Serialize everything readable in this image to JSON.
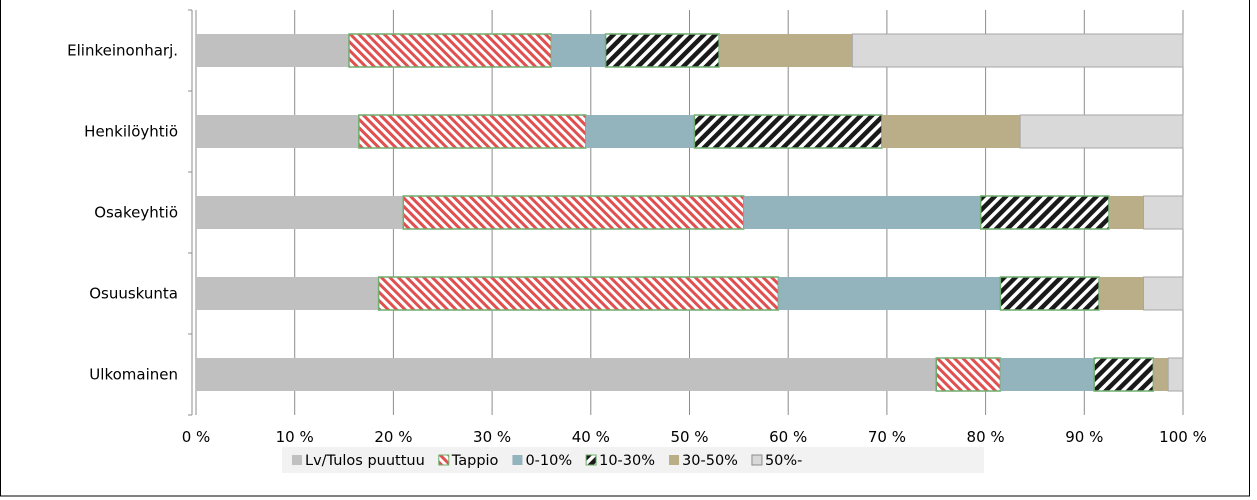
{
  "chart_data": {
    "type": "bar",
    "orientation": "horizontal",
    "stacked": true,
    "percent_stacked": true,
    "title_fragment": "",
    "categories": [
      "Elinkeinonharj.",
      "Henkilöyhtiö",
      "Osakeyhtiö",
      "Osuuskunta",
      "Ulkomainen"
    ],
    "series": [
      {
        "name": "Lv/Tulos puuttuu",
        "color": "#c0c0c0",
        "pattern": "solid",
        "values": [
          15.5,
          16.5,
          21.0,
          18.5,
          75.0
        ]
      },
      {
        "name": "Tappio",
        "color": "#e05050",
        "pattern": "diag-light",
        "values": [
          20.5,
          23.0,
          34.5,
          40.5,
          6.5
        ]
      },
      {
        "name": "0-10%",
        "color": "#93b3bd",
        "pattern": "solid",
        "values": [
          5.5,
          11.0,
          24.0,
          22.5,
          9.5
        ]
      },
      {
        "name": "10-30%",
        "color": "#1a1a1a",
        "pattern": "diag-dark",
        "values": [
          11.5,
          19.0,
          13.0,
          10.0,
          6.0
        ]
      },
      {
        "name": "30-50%",
        "color": "#b9ae87",
        "pattern": "solid",
        "values": [
          13.5,
          14.0,
          3.5,
          4.5,
          1.5
        ]
      },
      {
        "name": "50%-",
        "color": "#d9d9d9",
        "pattern": "solid",
        "values": [
          33.5,
          16.5,
          4.0,
          4.0,
          1.5
        ]
      }
    ],
    "x_ticks": [
      "0 %",
      "10 %",
      "20 %",
      "30 %",
      "40 %",
      "50 %",
      "60 %",
      "70 %",
      "80 %",
      "90 %",
      "100 %"
    ],
    "xlim": [
      0,
      100
    ],
    "grid": true,
    "legend_position": "bottom"
  }
}
